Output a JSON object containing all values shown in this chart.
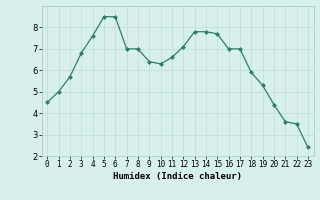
{
  "x": [
    0,
    1,
    2,
    3,
    4,
    5,
    6,
    7,
    8,
    9,
    10,
    11,
    12,
    13,
    14,
    15,
    16,
    17,
    18,
    19,
    20,
    21,
    22,
    23
  ],
  "y": [
    4.5,
    5.0,
    5.7,
    6.8,
    7.6,
    8.5,
    8.5,
    7.0,
    7.0,
    6.4,
    6.3,
    6.6,
    7.1,
    7.8,
    7.8,
    7.7,
    7.0,
    7.0,
    5.9,
    5.3,
    4.4,
    3.6,
    3.5,
    2.4
  ],
  "line_color": "#2e7d6e",
  "marker": "D",
  "markersize": 2.0,
  "linewidth": 0.9,
  "xlabel": "Humidex (Indice chaleur)",
  "xlabel_fontsize": 6.5,
  "ylim": [
    2,
    9
  ],
  "xlim": [
    -0.5,
    23.5
  ],
  "yticks": [
    2,
    3,
    4,
    5,
    6,
    7,
    8
  ],
  "xticks": [
    0,
    1,
    2,
    3,
    4,
    5,
    6,
    7,
    8,
    9,
    10,
    11,
    12,
    13,
    14,
    15,
    16,
    17,
    18,
    19,
    20,
    21,
    22,
    23
  ],
  "bg_color": "#d8f0ec",
  "grid_color": "#c0ddd8",
  "tick_fontsize": 5.5,
  "ytick_fontsize": 6.0
}
